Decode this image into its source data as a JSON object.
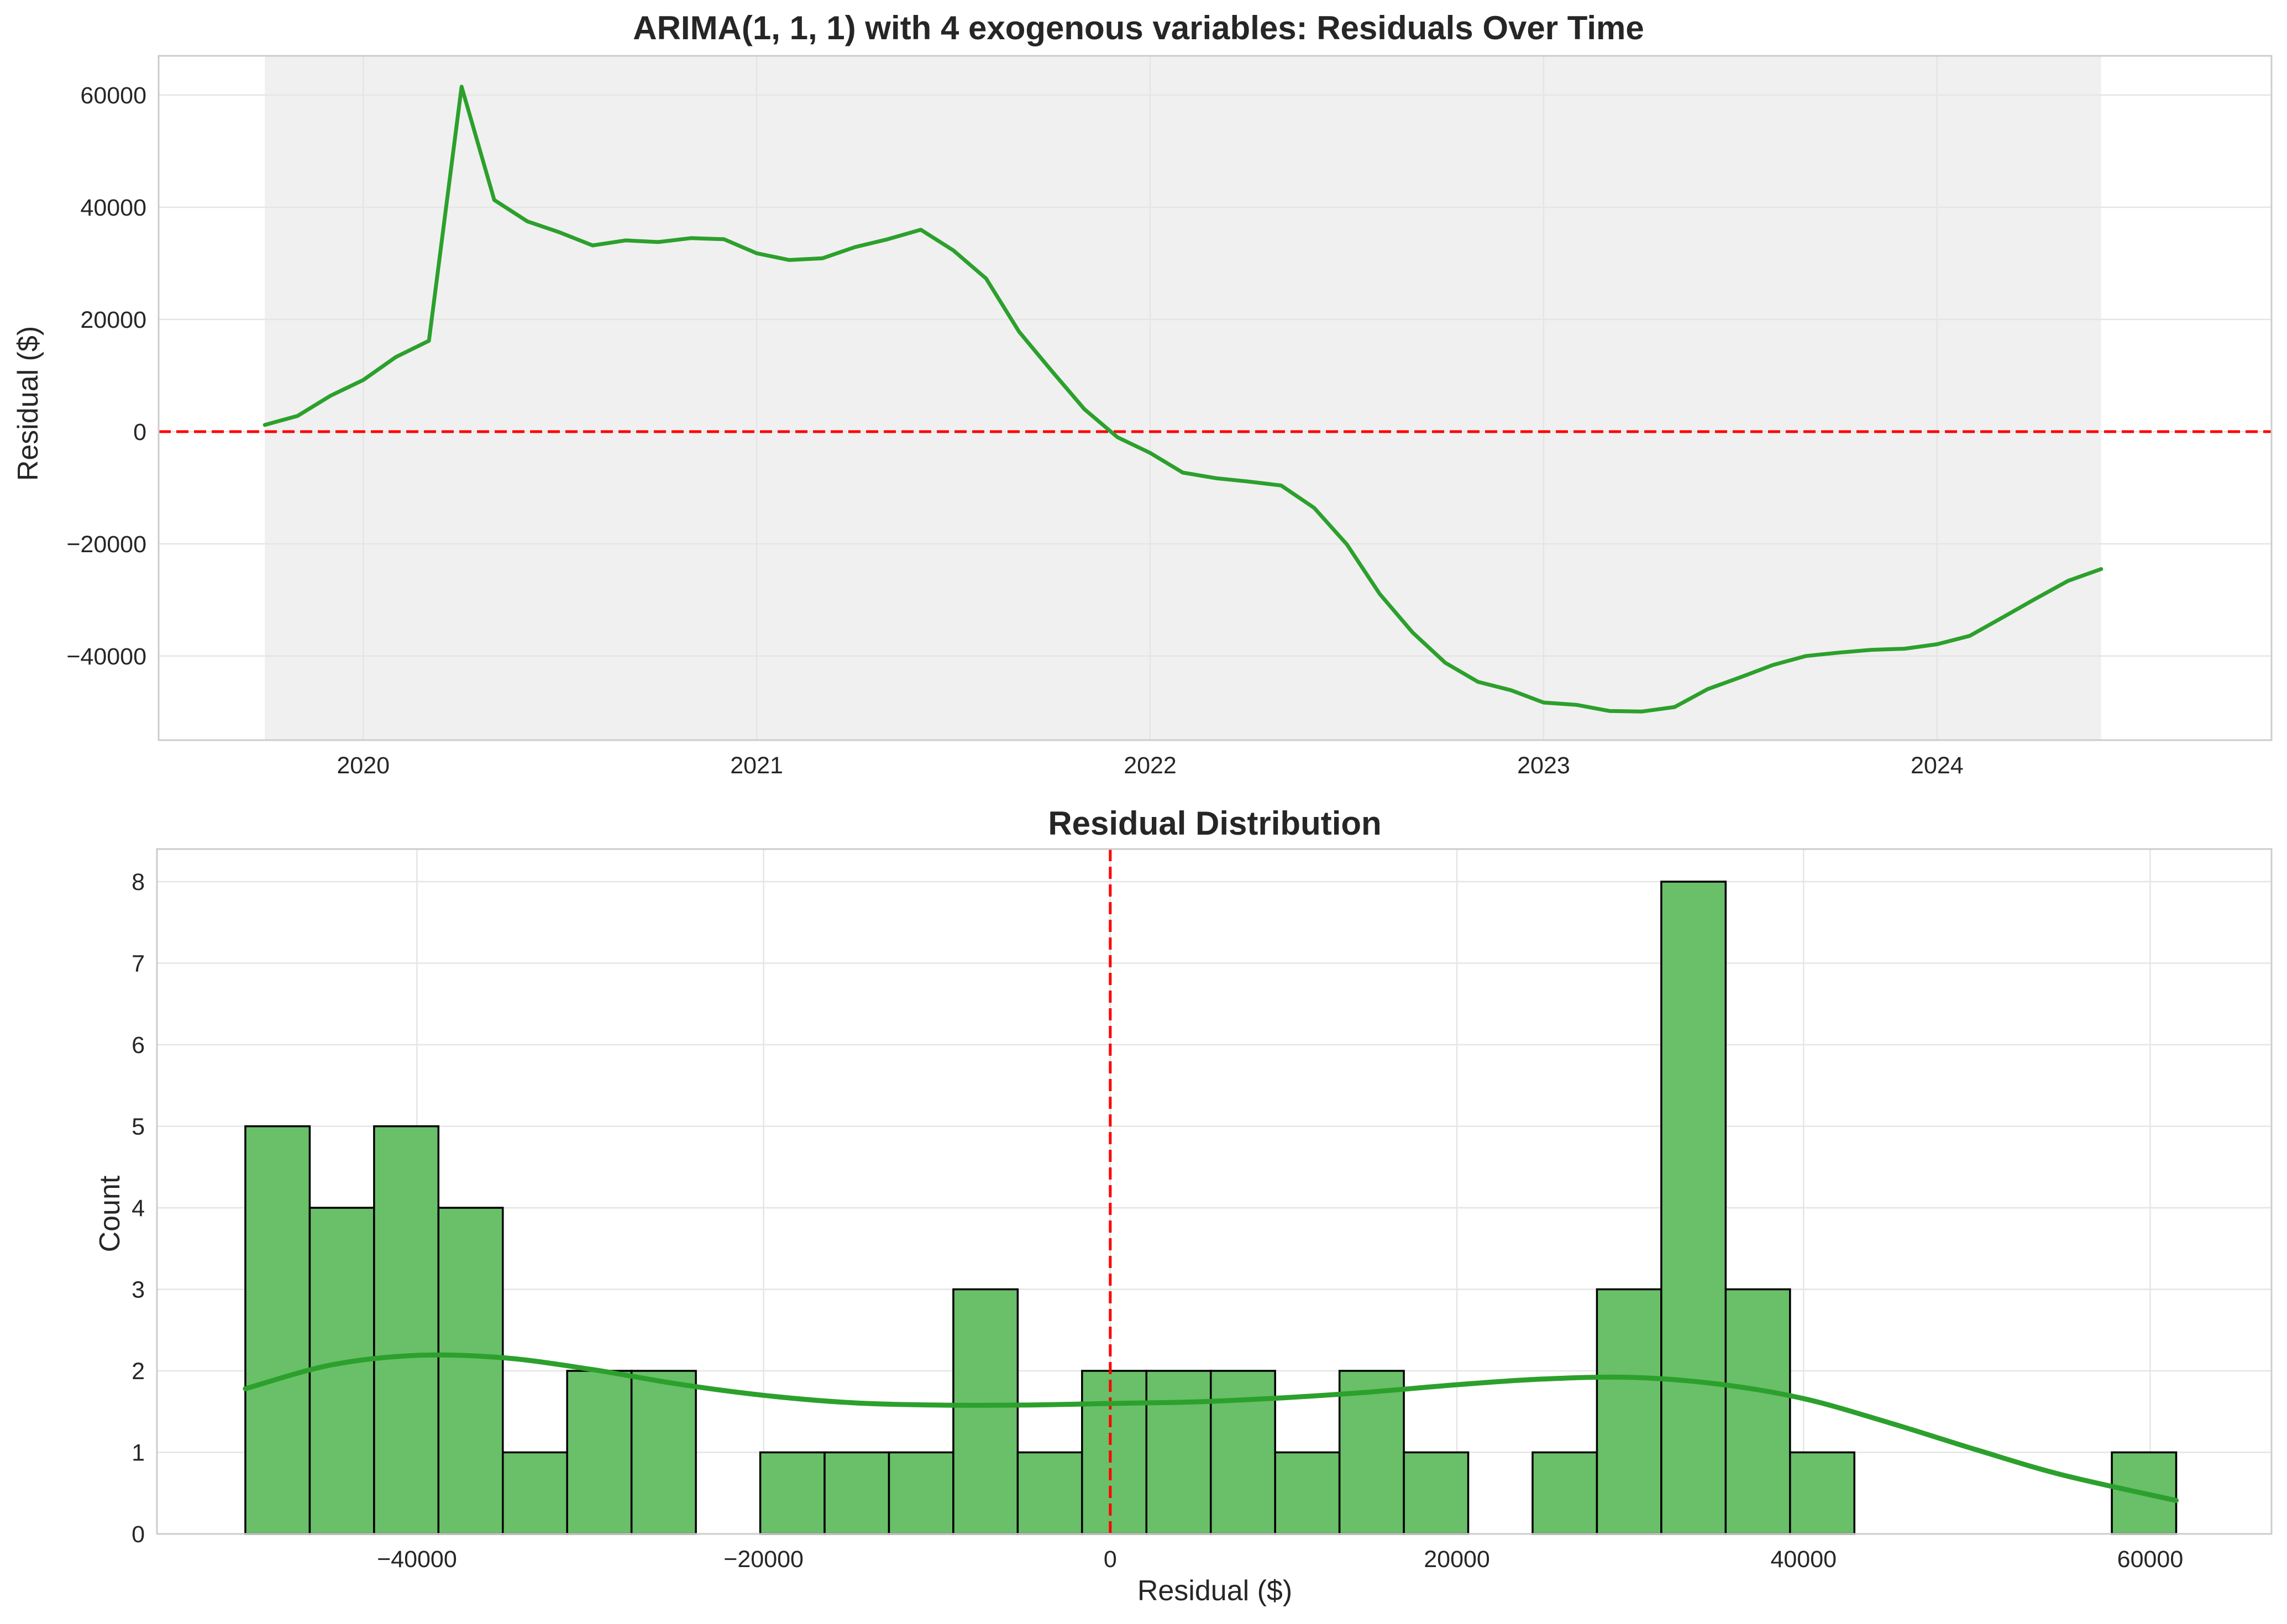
{
  "chart_data": [
    {
      "type": "line",
      "title": "ARIMA(1, 1, 1) with 4 exogenous variables: Residuals Over Time",
      "xlabel": "",
      "ylabel": "Residual ($)",
      "x_ticks": [
        "2020",
        "2021",
        "2022",
        "2023",
        "2024"
      ],
      "x_range": [
        2019.48,
        2024.85
      ],
      "ylim": [
        -55000,
        67000
      ],
      "y_ticks": [
        -40000,
        -20000,
        0,
        20000,
        40000,
        60000
      ],
      "y_tick_labels": [
        "−40000",
        "−20000",
        "0",
        "20000",
        "40000",
        "60000"
      ],
      "grid": true,
      "reference_line": {
        "y": 0,
        "color": "#ff0000",
        "style": "dashed"
      },
      "shaded_span": {
        "from": 2019.75,
        "to": 2024.417,
        "color": "#f0f0f0"
      },
      "series": [
        {
          "name": "Residuals",
          "color": "#2ca02c",
          "x": [
            2019.75,
            2019.833,
            2019.917,
            2020.0,
            2020.083,
            2020.167,
            2020.25,
            2020.333,
            2020.417,
            2020.5,
            2020.583,
            2020.667,
            2020.75,
            2020.833,
            2020.917,
            2021.0,
            2021.083,
            2021.167,
            2021.25,
            2021.333,
            2021.417,
            2021.5,
            2021.583,
            2021.667,
            2021.75,
            2021.833,
            2021.917,
            2022.0,
            2022.083,
            2022.167,
            2022.25,
            2022.333,
            2022.417,
            2022.5,
            2022.583,
            2022.667,
            2022.75,
            2022.833,
            2022.917,
            2023.0,
            2023.083,
            2023.167,
            2023.25,
            2023.333,
            2023.417,
            2023.5,
            2023.583,
            2023.667,
            2023.75,
            2023.833,
            2023.917,
            2024.0,
            2024.083,
            2024.167,
            2024.25,
            2024.333,
            2024.417
          ],
          "values": [
            1200,
            2800,
            6400,
            9200,
            13300,
            16200,
            61500,
            41300,
            37500,
            35500,
            33200,
            34100,
            33800,
            34500,
            34300,
            31800,
            30600,
            30900,
            32900,
            34300,
            36000,
            32300,
            27300,
            17800,
            10800,
            4000,
            -1000,
            -3800,
            -7300,
            -8300,
            -8900,
            -9600,
            -13600,
            -20100,
            -28900,
            -35800,
            -41200,
            -44600,
            -46100,
            -48300,
            -48700,
            -49800,
            -49900,
            -49100,
            -45900,
            -43800,
            -41600,
            -40000,
            -39400,
            -38900,
            -38700,
            -37900,
            -36400,
            -33100,
            -29800,
            -26600,
            -24500
          ]
        }
      ]
    },
    {
      "type": "histogram",
      "title": "Residual Distribution",
      "xlabel": "Residual ($)",
      "ylabel": "Count",
      "xlim": [
        -55000,
        67000
      ],
      "ylim": [
        0,
        8.4
      ],
      "x_ticks": [
        -40000,
        -20000,
        0,
        20000,
        40000,
        60000
      ],
      "x_tick_labels": [
        "−40000",
        "−20000",
        "0",
        "20000",
        "40000",
        "60000"
      ],
      "y_ticks": [
        0,
        1,
        2,
        3,
        4,
        5,
        6,
        7,
        8
      ],
      "y_tick_labels": [
        "0",
        "1",
        "2",
        "3",
        "4",
        "5",
        "6",
        "7",
        "8"
      ],
      "grid": true,
      "bin_start": -49900,
      "bin_end": 61500,
      "bar_color": "#6abf69",
      "edge_color": "#000000",
      "counts": [
        5,
        4,
        5,
        4,
        1,
        2,
        2,
        0,
        1,
        1,
        1,
        3,
        1,
        2,
        2,
        2,
        1,
        2,
        1,
        0,
        1,
        3,
        8,
        3,
        1,
        0,
        0,
        0,
        0,
        1
      ],
      "reference_line": {
        "x": 0,
        "color": "#ff0000",
        "style": "dashed"
      },
      "kde": {
        "color": "#2ca02c",
        "x": [
          -49900,
          -45000,
          -40000,
          -35000,
          -30000,
          -25000,
          -20000,
          -15000,
          -10000,
          -5000,
          0,
          5000,
          10000,
          15000,
          20000,
          25000,
          30000,
          35000,
          40000,
          45000,
          50000,
          55000,
          61500
        ],
        "y": [
          1.78,
          2.07,
          2.19,
          2.16,
          2.02,
          1.84,
          1.7,
          1.61,
          1.58,
          1.58,
          1.6,
          1.62,
          1.67,
          1.74,
          1.83,
          1.9,
          1.92,
          1.84,
          1.66,
          1.36,
          1.03,
          0.72,
          0.41
        ]
      }
    }
  ]
}
